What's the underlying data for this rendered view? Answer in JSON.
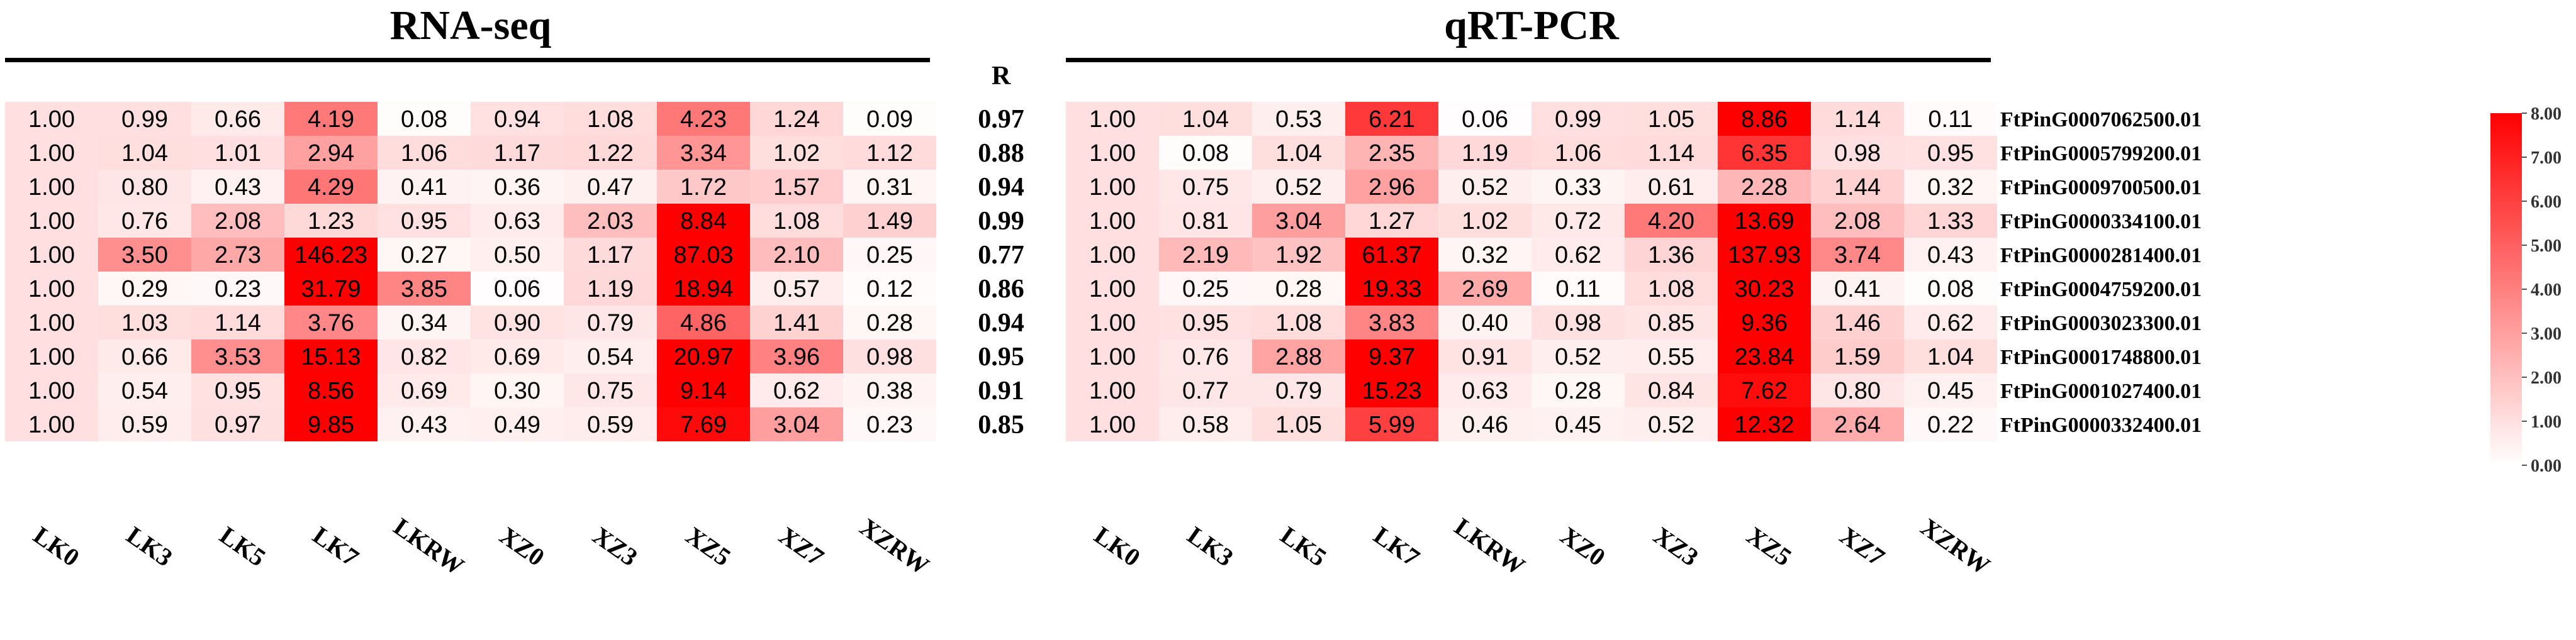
{
  "chart_data": {
    "type": "heatmap",
    "color_low": "#ffffff",
    "color_high": "#ff0000",
    "color_scale": [
      0,
      8
    ],
    "colorbar_ticks": [
      "8.00",
      "7.00",
      "6.00",
      "5.00",
      "4.00",
      "3.00",
      "2.00",
      "1.00",
      "0.00"
    ],
    "samples": [
      "LK0",
      "LK3",
      "LK5",
      "LK7",
      "LKRW",
      "XZ0",
      "XZ3",
      "XZ5",
      "XZ7",
      "XZRW"
    ],
    "genes": [
      "FtPinG0007062500.01",
      "FtPinG0005799200.01",
      "FtPinG0009700500.01",
      "FtPinG0000334100.01",
      "FtPinG0000281400.01",
      "FtPinG0004759200.01",
      "FtPinG0003023300.01",
      "FtPinG0001748800.01",
      "FtPinG0001027400.01",
      "FtPinG0000332400.01"
    ],
    "r_label": "R",
    "r_values": [
      "0.97",
      "0.88",
      "0.94",
      "0.99",
      "0.77",
      "0.86",
      "0.94",
      "0.95",
      "0.91",
      "0.85"
    ],
    "panels": [
      {
        "title": "RNA-seq",
        "values": [
          [
            "1.00",
            "0.99",
            "0.66",
            "4.19",
            "0.08",
            "0.94",
            "1.08",
            "4.23",
            "1.24",
            "0.09"
          ],
          [
            "1.00",
            "1.04",
            "1.01",
            "2.94",
            "1.06",
            "1.17",
            "1.22",
            "3.34",
            "1.02",
            "1.12"
          ],
          [
            "1.00",
            "0.80",
            "0.43",
            "4.29",
            "0.41",
            "0.36",
            "0.47",
            "1.72",
            "1.57",
            "0.31"
          ],
          [
            "1.00",
            "0.76",
            "2.08",
            "1.23",
            "0.95",
            "0.63",
            "2.03",
            "8.84",
            "1.08",
            "1.49"
          ],
          [
            "1.00",
            "3.50",
            "2.73",
            "146.23",
            "0.27",
            "0.50",
            "1.17",
            "87.03",
            "2.10",
            "0.25"
          ],
          [
            "1.00",
            "0.29",
            "0.23",
            "31.79",
            "3.85",
            "0.06",
            "1.19",
            "18.94",
            "0.57",
            "0.12"
          ],
          [
            "1.00",
            "1.03",
            "1.14",
            "3.76",
            "0.34",
            "0.90",
            "0.79",
            "4.86",
            "1.41",
            "0.28"
          ],
          [
            "1.00",
            "0.66",
            "3.53",
            "15.13",
            "0.82",
            "0.69",
            "0.54",
            "20.97",
            "3.96",
            "0.98"
          ],
          [
            "1.00",
            "0.54",
            "0.95",
            "8.56",
            "0.69",
            "0.30",
            "0.75",
            "9.14",
            "0.62",
            "0.38"
          ],
          [
            "1.00",
            "0.59",
            "0.97",
            "9.85",
            "0.43",
            "0.49",
            "0.59",
            "7.69",
            "3.04",
            "0.23"
          ]
        ]
      },
      {
        "title": "qRT-PCR",
        "values": [
          [
            "1.00",
            "1.04",
            "0.53",
            "6.21",
            "0.06",
            "0.99",
            "1.05",
            "8.86",
            "1.14",
            "0.11"
          ],
          [
            "1.00",
            "0.08",
            "1.04",
            "2.35",
            "1.19",
            "1.06",
            "1.14",
            "6.35",
            "0.98",
            "0.95"
          ],
          [
            "1.00",
            "0.75",
            "0.52",
            "2.96",
            "0.52",
            "0.33",
            "0.61",
            "2.28",
            "1.44",
            "0.32"
          ],
          [
            "1.00",
            "0.81",
            "3.04",
            "1.27",
            "1.02",
            "0.72",
            "4.20",
            "13.69",
            "2.08",
            "1.33"
          ],
          [
            "1.00",
            "2.19",
            "1.92",
            "61.37",
            "0.32",
            "0.62",
            "1.36",
            "137.93",
            "3.74",
            "0.43"
          ],
          [
            "1.00",
            "0.25",
            "0.28",
            "19.33",
            "2.69",
            "0.11",
            "1.08",
            "30.23",
            "0.41",
            "0.08"
          ],
          [
            "1.00",
            "0.95",
            "1.08",
            "3.83",
            "0.40",
            "0.98",
            "0.85",
            "9.36",
            "1.46",
            "0.62"
          ],
          [
            "1.00",
            "0.76",
            "2.88",
            "9.37",
            "0.91",
            "0.52",
            "0.55",
            "23.84",
            "1.59",
            "1.04"
          ],
          [
            "1.00",
            "0.77",
            "0.79",
            "15.23",
            "0.63",
            "0.28",
            "0.84",
            "7.62",
            "0.80",
            "0.45"
          ],
          [
            "1.00",
            "0.58",
            "1.05",
            "5.99",
            "0.46",
            "0.45",
            "0.52",
            "12.32",
            "2.64",
            "0.22"
          ]
        ]
      }
    ]
  }
}
